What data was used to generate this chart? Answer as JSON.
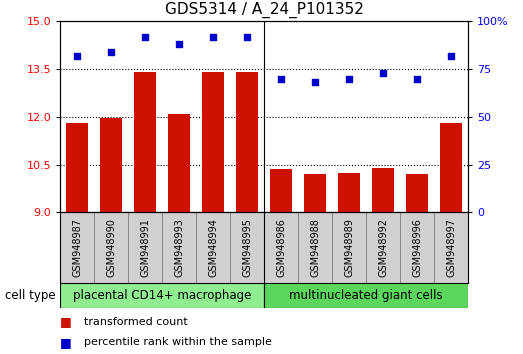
{
  "title": "GDS5314 / A_24_P101352",
  "samples": [
    "GSM948987",
    "GSM948990",
    "GSM948991",
    "GSM948993",
    "GSM948994",
    "GSM948995",
    "GSM948986",
    "GSM948988",
    "GSM948989",
    "GSM948992",
    "GSM948996",
    "GSM948997"
  ],
  "transformed_count": [
    11.8,
    11.95,
    13.4,
    12.1,
    13.4,
    13.4,
    10.35,
    10.2,
    10.25,
    10.4,
    10.2,
    11.8
  ],
  "percentile_rank": [
    82,
    84,
    92,
    88,
    92,
    92,
    70,
    68,
    70,
    73,
    70,
    82
  ],
  "groups": [
    {
      "label": "placental CD14+ macrophage",
      "count": 6,
      "color": "#90ee90"
    },
    {
      "label": "multinucleated giant cells",
      "count": 6,
      "color": "#5cd65c"
    }
  ],
  "ylim_left": [
    9,
    15
  ],
  "ylim_right": [
    0,
    100
  ],
  "yticks_left": [
    9,
    10.5,
    12,
    13.5,
    15
  ],
  "yticks_right": [
    0,
    25,
    50,
    75,
    100
  ],
  "bar_color": "#cc1100",
  "dot_color": "#0000cc",
  "bar_width": 0.65,
  "grid_color": "black",
  "xtick_bg": "#d0d0d0",
  "plot_bg": "white",
  "legend_bar_label": "transformed count",
  "legend_dot_label": "percentile rank within the sample",
  "cell_type_label": "cell type",
  "title_fontsize": 11,
  "tick_fontsize": 8,
  "sample_fontsize": 7,
  "legend_fontsize": 8,
  "celltype_fontsize": 8.5
}
